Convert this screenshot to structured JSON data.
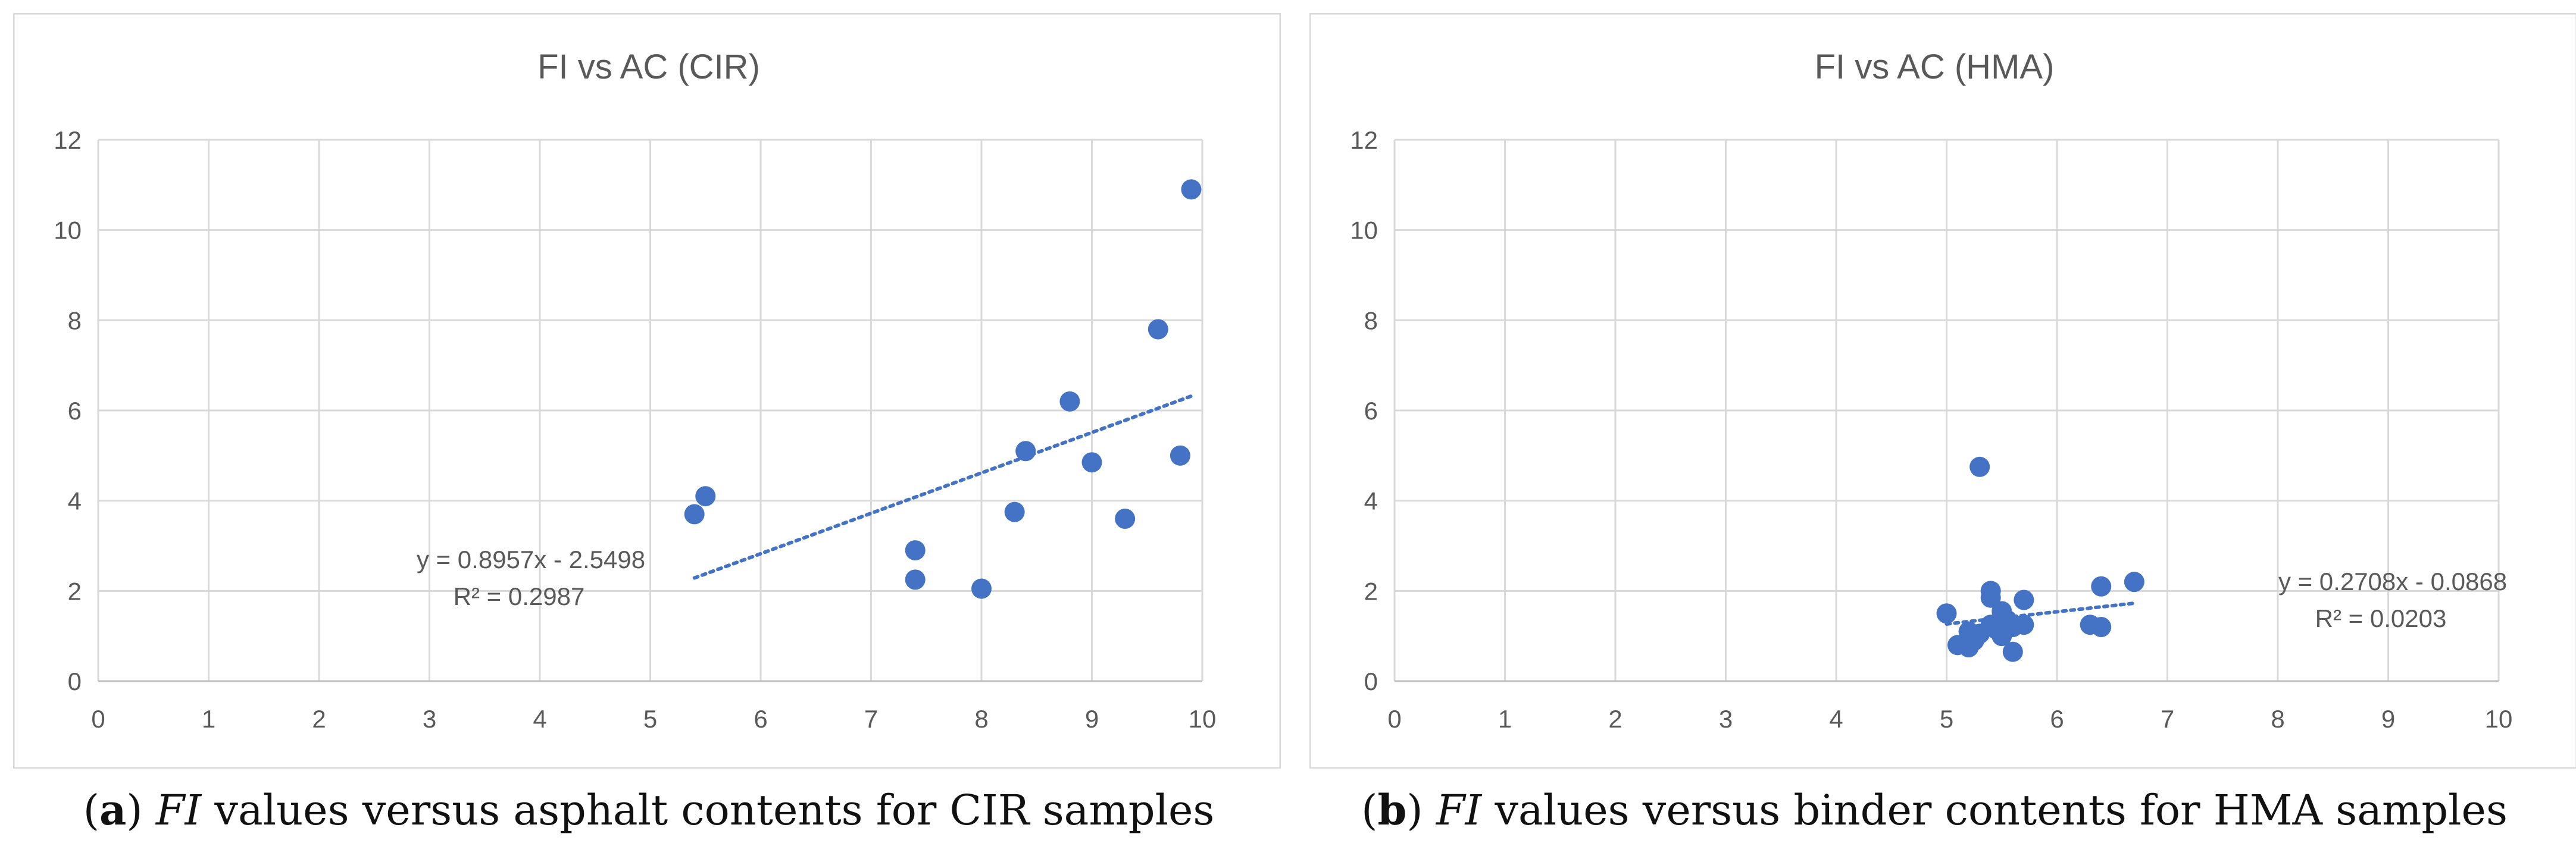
{
  "chart_data": [
    {
      "type": "scatter",
      "title": "FI vs AC (CIR)",
      "xlabel": "",
      "ylabel": "",
      "xlim": [
        0,
        10
      ],
      "ylim": [
        0,
        12
      ],
      "xticks": [
        0,
        1,
        2,
        3,
        4,
        5,
        6,
        7,
        8,
        9,
        10
      ],
      "yticks": [
        0,
        2,
        4,
        6,
        8,
        10,
        12
      ],
      "grid": true,
      "marker_color": "#4472c4",
      "points": [
        {
          "x": 5.4,
          "y": 3.7
        },
        {
          "x": 5.5,
          "y": 4.1
        },
        {
          "x": 7.4,
          "y": 2.9
        },
        {
          "x": 7.4,
          "y": 2.25
        },
        {
          "x": 8.0,
          "y": 2.05
        },
        {
          "x": 8.3,
          "y": 3.75
        },
        {
          "x": 8.4,
          "y": 5.1
        },
        {
          "x": 8.8,
          "y": 6.2
        },
        {
          "x": 9.0,
          "y": 4.85
        },
        {
          "x": 9.3,
          "y": 3.6
        },
        {
          "x": 9.6,
          "y": 7.8
        },
        {
          "x": 9.8,
          "y": 5.0
        },
        {
          "x": 9.9,
          "y": 10.9
        }
      ],
      "trendline": {
        "slope": 0.8957,
        "intercept": -2.5498,
        "x_start": 5.4,
        "x_end": 9.9
      },
      "equation": "y = 0.8957x - 2.5498",
      "r_squared": "R² = 0.2987"
    },
    {
      "type": "scatter",
      "title": "FI vs AC (HMA)",
      "xlabel": "",
      "ylabel": "",
      "xlim": [
        0,
        10
      ],
      "ylim": [
        0,
        12
      ],
      "xticks": [
        0,
        1,
        2,
        3,
        4,
        5,
        6,
        7,
        8,
        9,
        10
      ],
      "yticks": [
        0,
        2,
        4,
        6,
        8,
        10,
        12
      ],
      "grid": true,
      "marker_color": "#4472c4",
      "points": [
        {
          "x": 5.0,
          "y": 1.5
        },
        {
          "x": 5.1,
          "y": 0.8
        },
        {
          "x": 5.2,
          "y": 1.1
        },
        {
          "x": 5.2,
          "y": 0.75
        },
        {
          "x": 5.25,
          "y": 0.9
        },
        {
          "x": 5.3,
          "y": 4.75
        },
        {
          "x": 5.3,
          "y": 1.05
        },
        {
          "x": 5.4,
          "y": 2.0
        },
        {
          "x": 5.4,
          "y": 1.85
        },
        {
          "x": 5.4,
          "y": 1.25
        },
        {
          "x": 5.45,
          "y": 1.15
        },
        {
          "x": 5.5,
          "y": 1.55
        },
        {
          "x": 5.5,
          "y": 1.0
        },
        {
          "x": 5.55,
          "y": 1.35
        },
        {
          "x": 5.6,
          "y": 1.2
        },
        {
          "x": 5.6,
          "y": 0.65
        },
        {
          "x": 5.7,
          "y": 1.8
        },
        {
          "x": 5.7,
          "y": 1.25
        },
        {
          "x": 6.3,
          "y": 1.25
        },
        {
          "x": 6.4,
          "y": 2.1
        },
        {
          "x": 6.4,
          "y": 1.2
        },
        {
          "x": 6.7,
          "y": 2.2
        }
      ],
      "trendline": {
        "slope": 0.2708,
        "intercept": -0.0868,
        "x_start": 5.0,
        "x_end": 6.7
      },
      "equation": "y = 0.2708x - 0.0868",
      "r_squared": "R² = 0.0203"
    }
  ],
  "captions": {
    "a": {
      "label": "a",
      "italic": "FI",
      "rest": " values versus asphalt contents for CIR samples"
    },
    "b": {
      "label": "b",
      "italic": "FI",
      "rest": " values versus binder contents for HMA samples"
    }
  }
}
